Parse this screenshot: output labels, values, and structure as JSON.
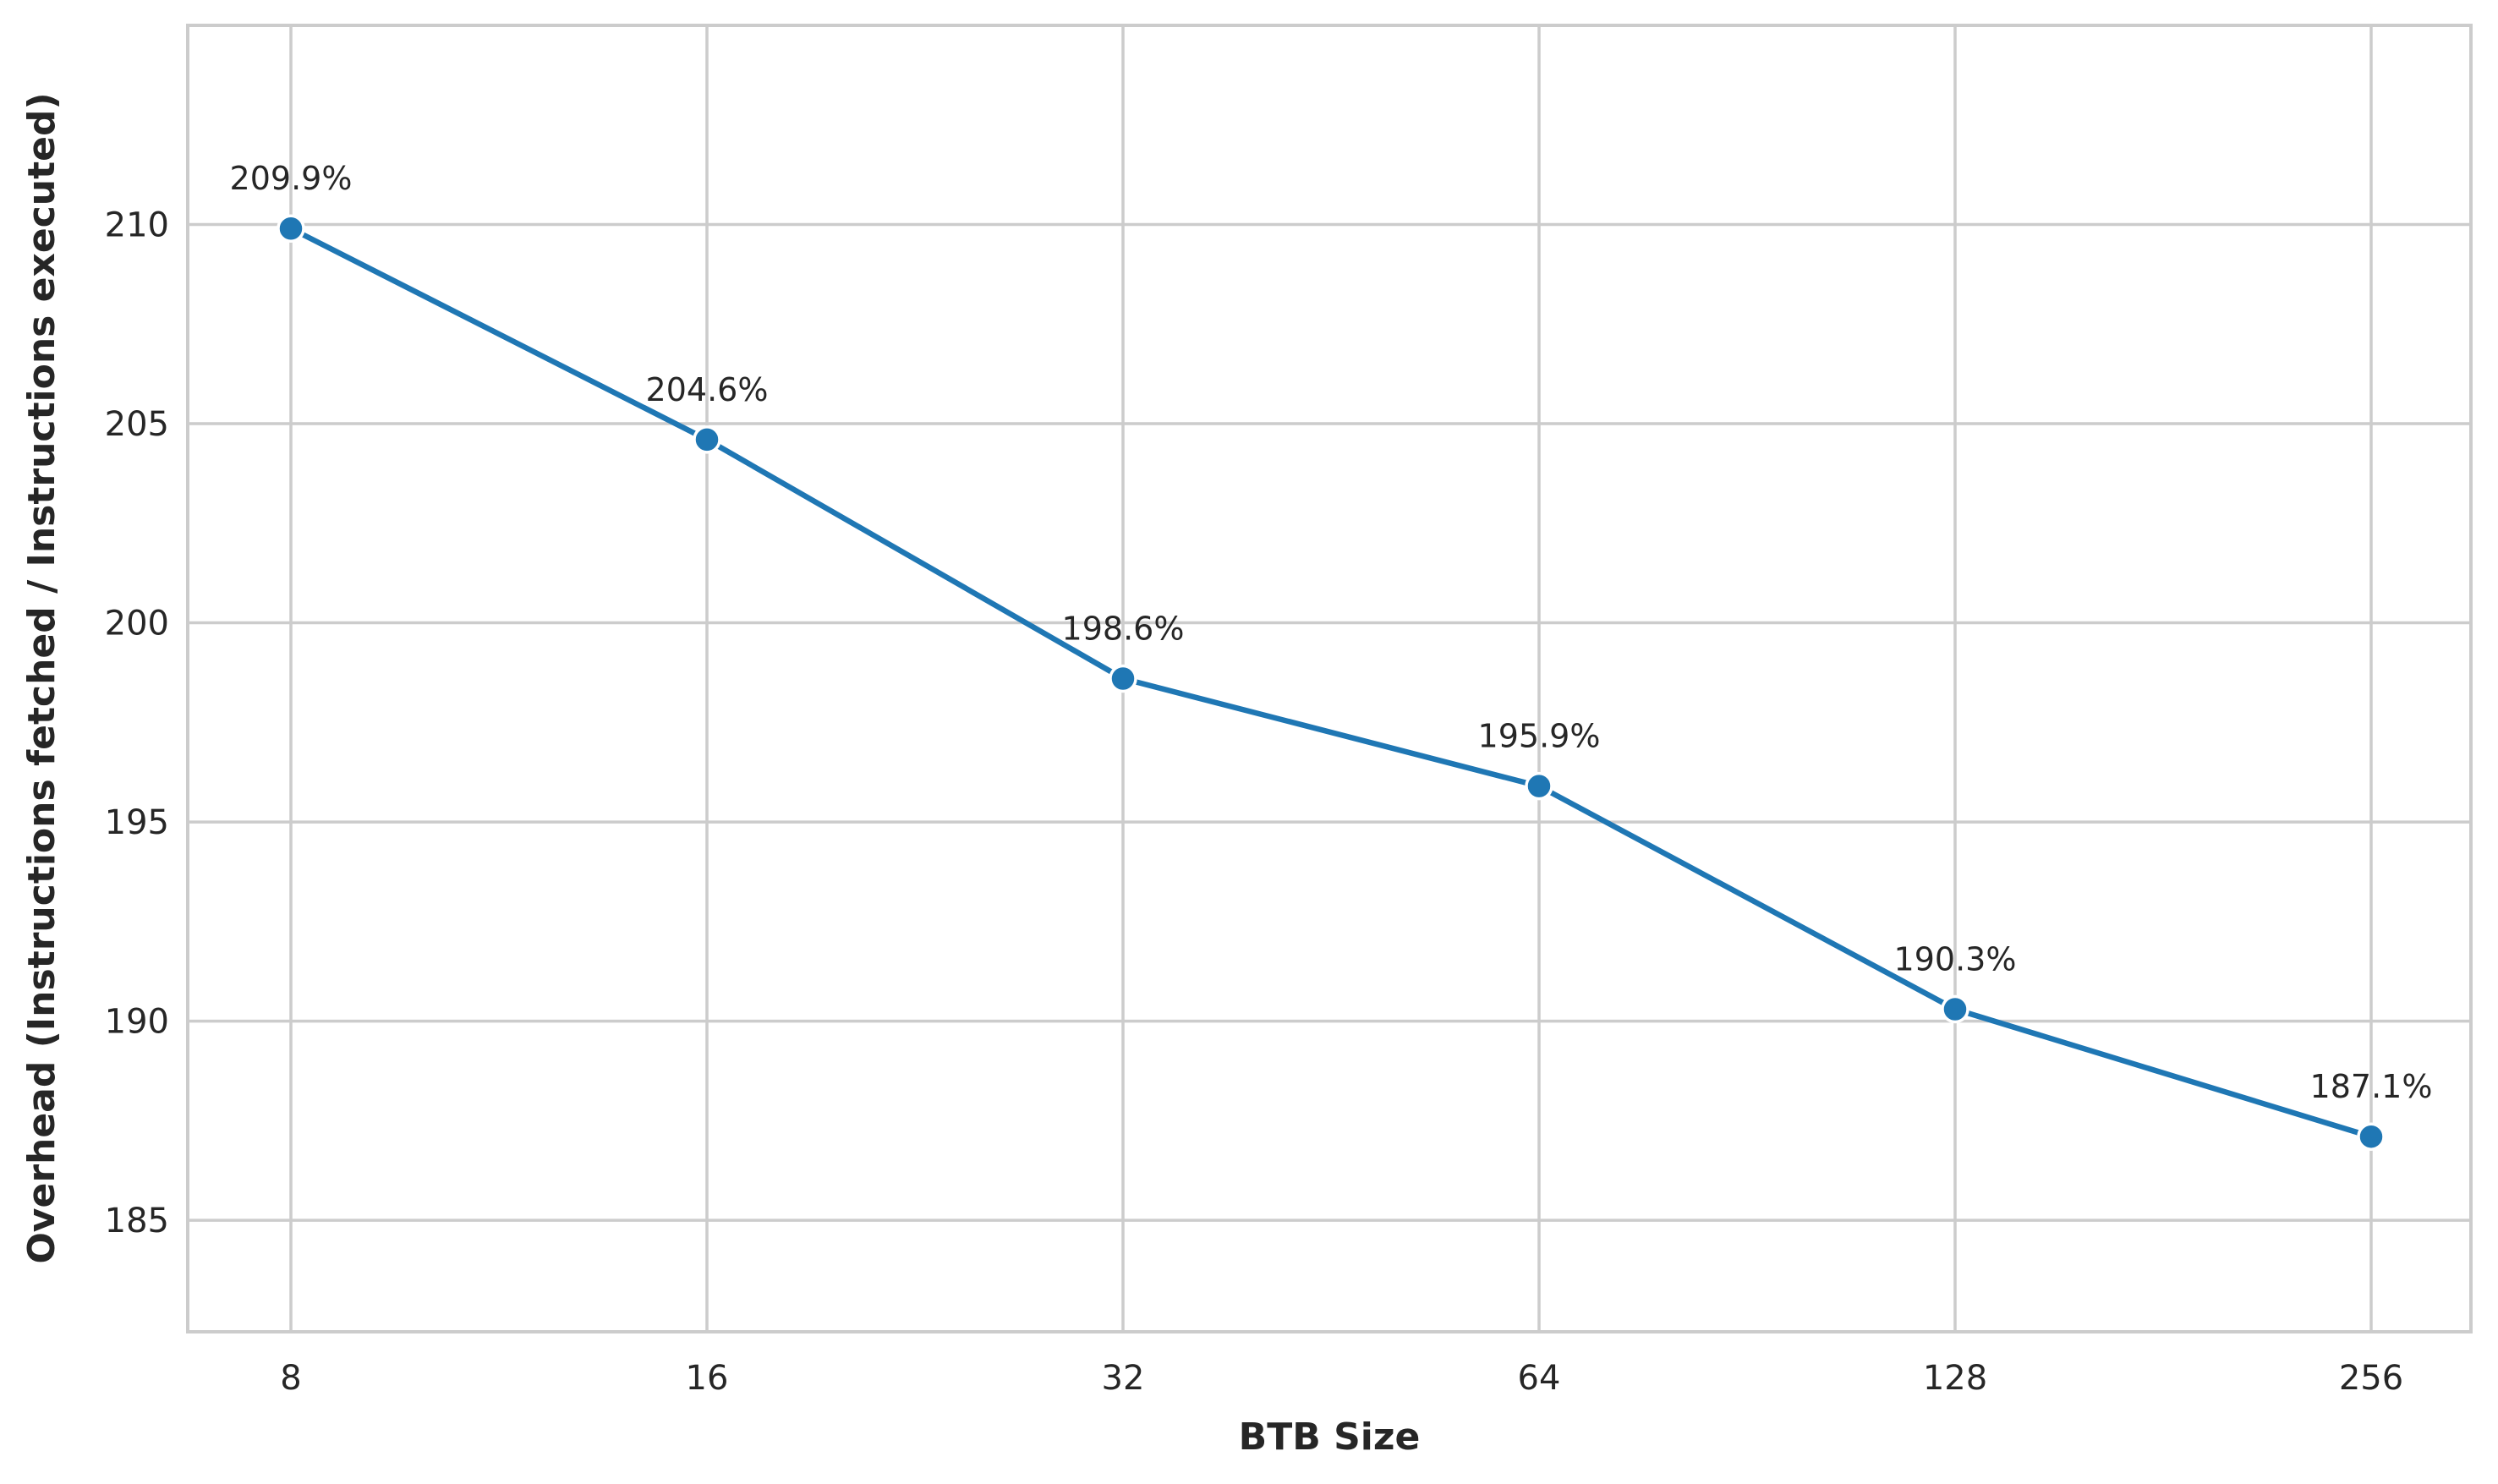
{
  "chart_data": {
    "type": "line",
    "title": "",
    "xlabel": "BTB Size",
    "ylabel": "Overhead (Instructions fetched / Instructions executed)",
    "categories": [
      "8",
      "16",
      "32",
      "64",
      "128",
      "256"
    ],
    "series": [
      {
        "values": [
          209.9,
          204.6,
          198.6,
          195.9,
          190.3,
          187.1
        ],
        "color": "#1f77b4"
      }
    ],
    "data_labels": [
      "209.9%",
      "204.6%",
      "198.6%",
      "195.9%",
      "190.3%",
      "187.1%"
    ],
    "yticks": [
      185,
      190,
      195,
      200,
      205,
      210
    ],
    "ylim": [
      182.2,
      215.0
    ],
    "x_scale": "categorical (log2 spacing)",
    "grid": true,
    "legend": "none",
    "marker": "circle"
  }
}
